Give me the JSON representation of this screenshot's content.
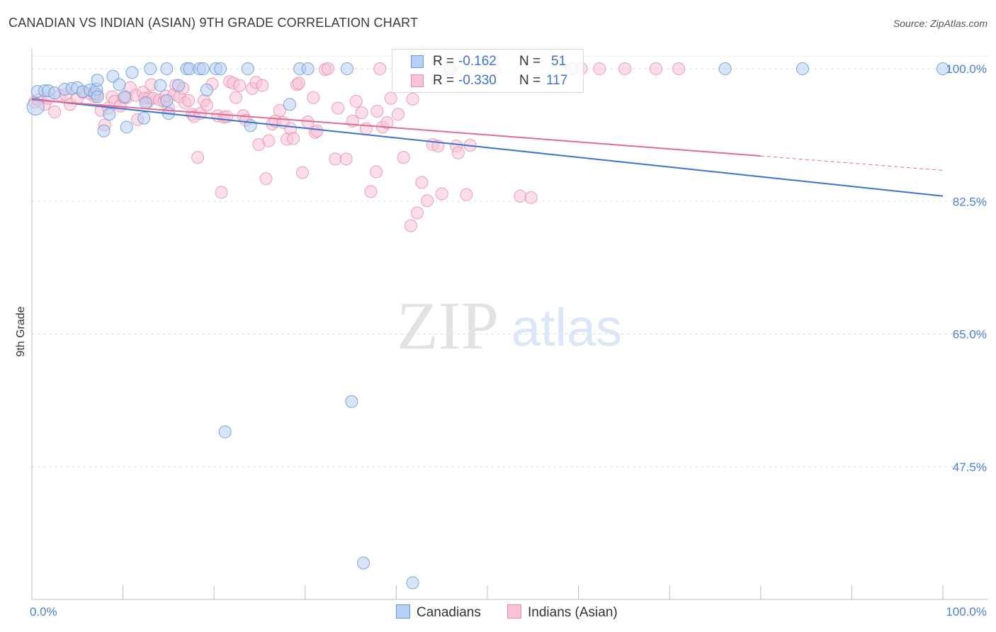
{
  "header": {
    "title": "CANADIAN VS INDIAN (ASIAN) 9TH GRADE CORRELATION CHART",
    "source": "Source: ZipAtlas.com"
  },
  "watermark": {
    "zip": "ZIP",
    "atlas": "atlas"
  },
  "legend": {
    "rows": [
      {
        "r_label": "R =",
        "r_value": "-0.162",
        "n_label": "N =",
        "n_value": "51"
      },
      {
        "r_label": "R =",
        "r_value": "-0.330",
        "n_label": "N =",
        "n_value": "117"
      }
    ]
  },
  "bottom_legend": {
    "canadians": "Canadians",
    "indians": "Indians (Asian)"
  },
  "colors": {
    "blue": "#6a97d8",
    "blue_fill": "#b8d0f4",
    "blue_line": "#3a74d0",
    "pink": "#e98aa9",
    "pink_fill": "#f8c3d3",
    "pink_line": "#e06b95",
    "grid": "#dcdcdc",
    "tick_text": "#4a7fd0"
  },
  "chart_data": {
    "type": "scatter",
    "title": "CANADIAN VS INDIAN (ASIAN) 9TH GRADE CORRELATION CHART",
    "xlabel": "",
    "ylabel": "9th Grade",
    "xlim": [
      0,
      100
    ],
    "ylim": [
      30.0,
      101.5
    ],
    "x_tick_labels": [
      "0.0%",
      "100.0%"
    ],
    "y_ticks": [
      {
        "value": 100.0,
        "label": "100.0%"
      },
      {
        "value": 82.5,
        "label": "82.5%"
      },
      {
        "value": 65.0,
        "label": "65.0%"
      },
      {
        "value": 47.5,
        "label": "47.5%"
      }
    ],
    "series": [
      {
        "name": "Canadians",
        "r": -0.162,
        "n": 51,
        "trend": {
          "x": [
            0,
            100
          ],
          "y": [
            96.0,
            83.2
          ]
        },
        "points": [
          [
            0.4,
            95.0
          ],
          [
            0.6,
            97.0
          ],
          [
            1.4,
            97.1
          ],
          [
            1.8,
            97.1
          ],
          [
            2.5,
            96.8
          ],
          [
            3.6,
            97.3
          ],
          [
            4.4,
            97.4
          ],
          [
            5.0,
            97.5
          ],
          [
            5.6,
            97.0
          ],
          [
            6.4,
            97.2
          ],
          [
            6.9,
            96.8
          ],
          [
            7.1,
            97.3
          ],
          [
            7.2,
            98.5
          ],
          [
            8.9,
            99.0
          ],
          [
            9.6,
            97.9
          ],
          [
            7.2,
            96.3
          ],
          [
            8.5,
            94.0
          ],
          [
            7.9,
            91.8
          ],
          [
            10.2,
            96.3
          ],
          [
            10.4,
            92.3
          ],
          [
            11.0,
            99.5
          ],
          [
            12.3,
            93.5
          ],
          [
            12.5,
            95.5
          ],
          [
            13.0,
            100.0
          ],
          [
            14.8,
            100.0
          ],
          [
            15.0,
            94.1
          ],
          [
            14.8,
            95.8
          ],
          [
            16.1,
            97.8
          ],
          [
            17.0,
            100.0
          ],
          [
            17.3,
            100.0
          ],
          [
            18.4,
            100.0
          ],
          [
            18.8,
            100.0
          ],
          [
            19.2,
            97.2
          ],
          [
            20.2,
            100.0
          ],
          [
            20.7,
            100.0
          ],
          [
            21.2,
            52.1
          ],
          [
            23.7,
            100.0
          ],
          [
            24.0,
            92.5
          ],
          [
            28.3,
            95.3
          ],
          [
            29.4,
            100.0
          ],
          [
            30.3,
            100.0
          ],
          [
            34.6,
            100.0
          ],
          [
            35.1,
            56.1
          ],
          [
            36.4,
            34.8
          ],
          [
            41.8,
            32.2
          ],
          [
            46.0,
            100.0
          ],
          [
            59.3,
            100.0
          ],
          [
            76.1,
            100.0
          ],
          [
            84.6,
            100.0
          ],
          [
            100.0,
            100.0
          ],
          [
            14.1,
            97.8
          ]
        ]
      },
      {
        "name": "Indians (Asian)",
        "r": -0.33,
        "n": 117,
        "trend": {
          "x": [
            0,
            80
          ],
          "y": [
            95.9,
            88.5
          ]
        },
        "trend_dashed": {
          "x": [
            80,
            100
          ],
          "y": [
            88.5,
            86.6
          ]
        },
        "points": [
          [
            0.3,
            95.6
          ],
          [
            0.7,
            95.9
          ],
          [
            1.4,
            95.3
          ],
          [
            1.8,
            96.1
          ],
          [
            2.5,
            94.3
          ],
          [
            3.1,
            96.5
          ],
          [
            3.7,
            96.6
          ],
          [
            4.2,
            95.3
          ],
          [
            5.0,
            96.1
          ],
          [
            5.6,
            96.9
          ],
          [
            6.4,
            96.7
          ],
          [
            6.9,
            96.3
          ],
          [
            7.2,
            96.6
          ],
          [
            7.6,
            94.5
          ],
          [
            8.0,
            92.6
          ],
          [
            8.4,
            94.8
          ],
          [
            8.8,
            96.3
          ],
          [
            9.1,
            95.7
          ],
          [
            9.7,
            95.1
          ],
          [
            10.1,
            96.2
          ],
          [
            10.4,
            96.2
          ],
          [
            10.8,
            97.5
          ],
          [
            11.4,
            96.5
          ],
          [
            11.6,
            93.3
          ],
          [
            12.2,
            96.9
          ],
          [
            12.4,
            96.1
          ],
          [
            12.7,
            95.6
          ],
          [
            12.9,
            96.2
          ],
          [
            13.1,
            97.9
          ],
          [
            13.3,
            96.1
          ],
          [
            14.0,
            95.9
          ],
          [
            14.5,
            95.7
          ],
          [
            14.7,
            96.4
          ],
          [
            15.0,
            94.9
          ],
          [
            15.6,
            96.6
          ],
          [
            15.8,
            97.8
          ],
          [
            16.2,
            96.3
          ],
          [
            16.6,
            97.4
          ],
          [
            16.8,
            95.5
          ],
          [
            17.2,
            95.8
          ],
          [
            17.6,
            94.0
          ],
          [
            17.8,
            93.7
          ],
          [
            18.2,
            88.3
          ],
          [
            18.5,
            94.1
          ],
          [
            18.9,
            95.8
          ],
          [
            19.2,
            95.2
          ],
          [
            19.8,
            98.0
          ],
          [
            20.4,
            93.8
          ],
          [
            20.8,
            83.7
          ],
          [
            21.1,
            93.6
          ],
          [
            21.4,
            93.7
          ],
          [
            21.7,
            98.3
          ],
          [
            22.1,
            98.1
          ],
          [
            22.4,
            96.2
          ],
          [
            22.8,
            97.8
          ],
          [
            23.2,
            93.8
          ],
          [
            23.5,
            93.2
          ],
          [
            24.2,
            97.4
          ],
          [
            24.6,
            98.2
          ],
          [
            24.9,
            90.0
          ],
          [
            25.3,
            97.8
          ],
          [
            25.7,
            85.5
          ],
          [
            26.0,
            90.5
          ],
          [
            26.4,
            92.7
          ],
          [
            26.7,
            93.1
          ],
          [
            27.2,
            94.5
          ],
          [
            27.6,
            92.9
          ],
          [
            28.0,
            90.7
          ],
          [
            28.4,
            92.1
          ],
          [
            28.7,
            90.8
          ],
          [
            29.1,
            97.9
          ],
          [
            29.3,
            98.1
          ],
          [
            29.7,
            86.3
          ],
          [
            30.3,
            93.0
          ],
          [
            30.9,
            96.2
          ],
          [
            31.1,
            91.6
          ],
          [
            31.3,
            91.8
          ],
          [
            32.2,
            99.9
          ],
          [
            33.3,
            88.1
          ],
          [
            33.6,
            94.8
          ],
          [
            34.5,
            88.1
          ],
          [
            35.2,
            93.1
          ],
          [
            35.6,
            95.7
          ],
          [
            36.2,
            94.2
          ],
          [
            36.7,
            92.1
          ],
          [
            37.2,
            83.8
          ],
          [
            37.8,
            86.4
          ],
          [
            38.2,
            100.0
          ],
          [
            38.5,
            92.3
          ],
          [
            39.0,
            92.9
          ],
          [
            39.4,
            96.1
          ],
          [
            40.2,
            94.0
          ],
          [
            40.8,
            88.3
          ],
          [
            41.6,
            79.3
          ],
          [
            42.3,
            81.0
          ],
          [
            42.8,
            85.0
          ],
          [
            43.4,
            82.6
          ],
          [
            44.0,
            90.0
          ],
          [
            44.6,
            89.8
          ],
          [
            45.0,
            83.5
          ],
          [
            45.4,
            100.0
          ],
          [
            46.6,
            89.8
          ],
          [
            46.8,
            88.9
          ],
          [
            47.7,
            83.4
          ],
          [
            48.1,
            89.9
          ],
          [
            50.9,
            100.0
          ],
          [
            53.6,
            83.2
          ],
          [
            54.8,
            83.0
          ],
          [
            62.3,
            100.0
          ],
          [
            68.5,
            100.0
          ],
          [
            71.0,
            100.0
          ],
          [
            65.1,
            100.0
          ],
          [
            60.3,
            100.0
          ],
          [
            45.9,
            100.0
          ],
          [
            32.5,
            100.0
          ],
          [
            41.8,
            96.0
          ],
          [
            37.9,
            94.4
          ]
        ]
      }
    ]
  }
}
